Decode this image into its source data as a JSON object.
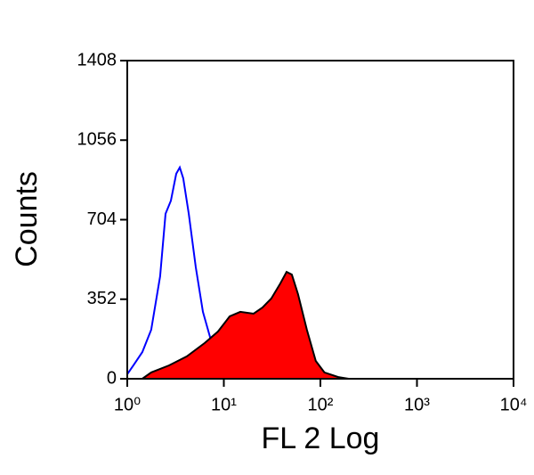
{
  "chart_data": {
    "type": "histogram-log",
    "x_label": "FL 2 Log",
    "y_label": "Counts",
    "xscale": "log",
    "xlim": [
      1,
      10000
    ],
    "xticks": [
      {
        "value": 1,
        "label": "10⁰"
      },
      {
        "value": 10,
        "label": "10¹"
      },
      {
        "value": 100,
        "label": "10²"
      },
      {
        "value": 1000,
        "label": "10³"
      },
      {
        "value": 10000,
        "label": "10⁴"
      }
    ],
    "ylim": [
      0,
      1408
    ],
    "yticks": [
      0,
      352,
      704,
      1056,
      1408
    ],
    "series": [
      {
        "color": "#0000ff",
        "fill": false,
        "x": [
          1.0,
          1.16,
          1.43,
          1.77,
          2.19,
          2.49,
          2.83,
          3.21,
          3.5,
          3.8,
          4.33,
          5.12,
          6.07,
          7.5,
          9.2,
          11.3,
          16.4
        ],
        "values": [
          20,
          60,
          118,
          217,
          453,
          730,
          788,
          907,
          935,
          887,
          730,
          493,
          296,
          158,
          59,
          20,
          0
        ]
      },
      {
        "color": "#ff0000",
        "edgecolor": "#000000",
        "fill": true,
        "x": [
          1.43,
          1.77,
          2.71,
          4.14,
          6.34,
          8.7,
          11.5,
          14.8,
          20.3,
          25.1,
          31,
          38.5,
          44.6,
          50.6,
          58.6,
          72.5,
          89.5,
          110,
          152,
          196
        ],
        "values": [
          0,
          28,
          59,
          99,
          158,
          209,
          276,
          296,
          288,
          315,
          355,
          422,
          473,
          461,
          375,
          217,
          79,
          28,
          8,
          0
        ]
      }
    ]
  }
}
